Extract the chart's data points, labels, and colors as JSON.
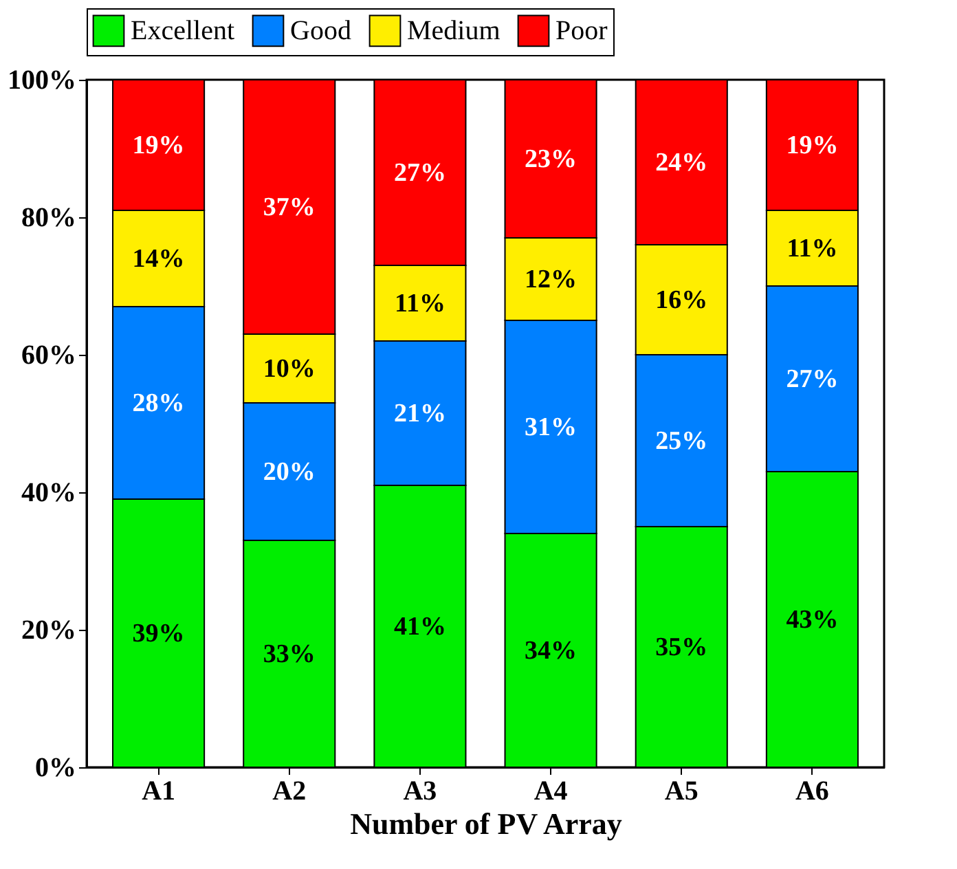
{
  "chart_data": {
    "type": "bar",
    "stacked": true,
    "xlabel": "Number of PV Array",
    "categories": [
      "A1",
      "A2",
      "A3",
      "A4",
      "A5",
      "A6"
    ],
    "series": [
      {
        "name": "Excellent",
        "color": "#00ee00",
        "values": [
          39,
          33,
          41,
          34,
          35,
          43
        ],
        "value_labels": [
          "39%",
          "33%",
          "41%",
          "34%",
          "35%",
          "43%"
        ]
      },
      {
        "name": "Good",
        "color": "#0080ff",
        "values": [
          28,
          20,
          21,
          31,
          25,
          27
        ],
        "value_labels": [
          "28%",
          "20%",
          "21%",
          "31%",
          "25%",
          "27%"
        ]
      },
      {
        "name": "Medium",
        "color": "#ffee00",
        "values": [
          14,
          10,
          11,
          12,
          16,
          11
        ],
        "value_labels": [
          "14%",
          "10%",
          "11%",
          "12%",
          "16%",
          "11%"
        ]
      },
      {
        "name": "Poor",
        "color": "#ff0000",
        "values": [
          19,
          37,
          27,
          23,
          24,
          19
        ],
        "value_labels": [
          "19%",
          "37%",
          "27%",
          "23%",
          "24%",
          "19%"
        ]
      }
    ],
    "ylim": [
      0,
      100
    ],
    "yticks": [
      {
        "value": 0,
        "label": "0%"
      },
      {
        "value": 20,
        "label": "20%"
      },
      {
        "value": 40,
        "label": "40%"
      },
      {
        "value": 60,
        "label": "60%"
      },
      {
        "value": 80,
        "label": "80%"
      },
      {
        "value": 100,
        "label": "100%"
      }
    ],
    "legend": "top",
    "grid": false
  }
}
